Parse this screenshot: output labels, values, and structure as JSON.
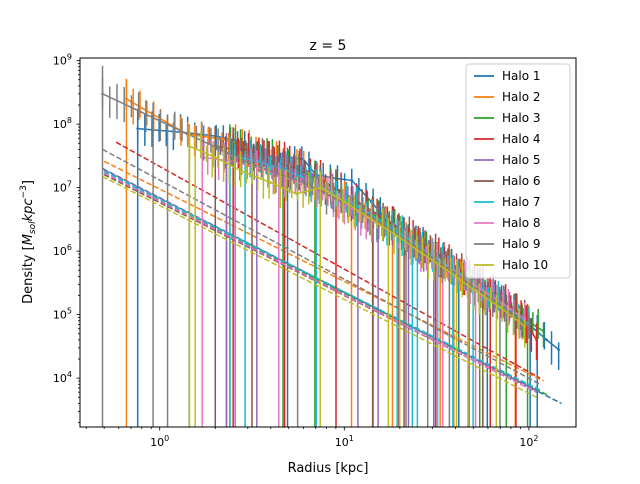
{
  "chart_data": {
    "type": "line",
    "title": "z = 5",
    "xlabel": "Radius [kpc]",
    "ylabel_main": "Density [",
    "ylabel_math": "M",
    "ylabel_sub": "sol",
    "ylabel_unit": "kpc",
    "ylabel_exp": "−3",
    "ylabel_close": "]",
    "x_scale": "log",
    "y_scale": "log",
    "xlim": [
      0.37,
      180
    ],
    "ylim": [
      1700,
      1100000000
    ],
    "x_ticks": [
      {
        "value": 1,
        "base": "10",
        "exp": "0"
      },
      {
        "value": 10,
        "base": "10",
        "exp": "1"
      },
      {
        "value": 100,
        "base": "10",
        "exp": "2"
      }
    ],
    "y_ticks": [
      {
        "value": 10000,
        "base": "10",
        "exp": "4"
      },
      {
        "value": 100000,
        "base": "10",
        "exp": "5"
      },
      {
        "value": 1000000,
        "base": "10",
        "exp": "6"
      },
      {
        "value": 10000000,
        "base": "10",
        "exp": "7"
      },
      {
        "value": 100000000,
        "base": "10",
        "exp": "8"
      },
      {
        "value": 1000000000,
        "base": "10",
        "exp": "9"
      }
    ],
    "legend_position": "top-right",
    "grid": false,
    "fit_lines": "dashed",
    "series": [
      {
        "name": "Halo 1",
        "color": "#1f77b4",
        "first_r": 0.76,
        "points": [
          [
            0.76,
            85000000.0
          ],
          [
            1.3,
            75000000.0
          ],
          [
            2.0,
            65000000.0
          ],
          [
            2.6,
            55000000.0
          ],
          [
            3.1,
            38000000.0
          ],
          [
            4.0,
            23000000.0
          ],
          [
            5.0,
            30000000.0
          ],
          [
            6.0,
            28000000.0
          ],
          [
            7.0,
            16000000.0
          ],
          [
            9.0,
            14000000.0
          ],
          [
            11.0,
            13000000.0
          ],
          [
            14.0,
            6000000.0
          ],
          [
            17.0,
            3000000.0
          ],
          [
            22.0,
            1800000.0
          ],
          [
            30.0,
            900000.0
          ],
          [
            40.0,
            500000.0
          ],
          [
            55.0,
            260000.0
          ],
          [
            75.0,
            140000.0
          ],
          [
            100.0,
            70000.0
          ],
          [
            125.0,
            40000.0
          ],
          [
            145.0,
            28000.0
          ]
        ],
        "fit": [
          [
            0.49,
            20000000.0
          ],
          [
            150.0,
            4000.0
          ]
        ]
      },
      {
        "name": "Halo 2",
        "color": "#ff7f0e",
        "first_r": 0.66,
        "points": [
          [
            0.66,
            250000000.0
          ],
          [
            1.4,
            70000000.0
          ],
          [
            2.2,
            58000000.0
          ],
          [
            3.0,
            42000000.0
          ],
          [
            4.5,
            27000000.0
          ],
          [
            6.0,
            20000000.0
          ],
          [
            8.0,
            10000000.0
          ],
          [
            10.0,
            6500000.0
          ],
          [
            14.0,
            4000000.0
          ],
          [
            18.0,
            2400000.0
          ],
          [
            25.0,
            1200000.0
          ],
          [
            35.0,
            600000.0
          ],
          [
            50.0,
            300000.0
          ],
          [
            70.0,
            160000.0
          ],
          [
            100.0,
            75000.0
          ]
        ],
        "fit": [
          [
            0.5,
            26000000.0
          ],
          [
            120.0,
            9000.0
          ]
        ]
      },
      {
        "name": "Halo 3",
        "color": "#2ca02c",
        "first_r": 2.4,
        "points": [
          [
            2.4,
            48000000.0
          ],
          [
            3.0,
            40000000.0
          ],
          [
            4.0,
            30000000.0
          ],
          [
            5.0,
            22000000.0
          ],
          [
            6.5,
            15000000.0
          ],
          [
            8.5,
            10000000.0
          ],
          [
            11.0,
            6000000.0
          ],
          [
            15.0,
            3500000.0
          ],
          [
            20.0,
            2000000.0
          ],
          [
            28.0,
            1000000.0
          ],
          [
            40.0,
            500000.0
          ],
          [
            55.0,
            260000.0
          ],
          [
            75.0,
            140000.0
          ],
          [
            95.0,
            85000.0
          ],
          [
            120.0,
            55000.0
          ]
        ],
        "fit": [
          [
            0.5,
            17000000.0
          ],
          [
            125.0,
            5500.0
          ]
        ]
      },
      {
        "name": "Halo 4",
        "color": "#d62728",
        "first_r": 2.5,
        "points": [
          [
            2.5,
            43000000.0
          ],
          [
            3.5,
            35000000.0
          ],
          [
            4.6,
            28000000.0
          ],
          [
            6.0,
            20000000.0
          ],
          [
            8.0,
            12000000.0
          ],
          [
            11.0,
            6500000.0
          ],
          [
            15.0,
            3800000.0
          ],
          [
            20.0,
            2200000.0
          ],
          [
            28.0,
            1100000.0
          ],
          [
            40.0,
            550000.0
          ],
          [
            55.0,
            280000.0
          ],
          [
            75.0,
            150000.0
          ],
          [
            95.0,
            80000.0
          ],
          [
            110.0,
            40000.0
          ]
        ],
        "fit": [
          [
            0.58,
            52000000.0
          ],
          [
            115.0,
            10000.0
          ]
        ]
      },
      {
        "name": "Halo 5",
        "color": "#9467bd",
        "first_r": 2.3,
        "points": [
          [
            2.3,
            35000000.0
          ],
          [
            3.2,
            30000000.0
          ],
          [
            4.5,
            22000000.0
          ],
          [
            6.0,
            16000000.0
          ],
          [
            8.0,
            10000000.0
          ],
          [
            11.0,
            5500000.0
          ],
          [
            15.0,
            3200000.0
          ],
          [
            20.0,
            1800000.0
          ],
          [
            28.0,
            950000.0
          ],
          [
            40.0,
            480000.0
          ],
          [
            55.0,
            250000.0
          ],
          [
            75.0,
            130000.0
          ],
          [
            95.0,
            70000.0
          ]
        ],
        "fit": [
          [
            0.5,
            19000000.0
          ],
          [
            110.0,
            6500.0
          ]
        ]
      },
      {
        "name": "Halo 6",
        "color": "#8c564b",
        "first_r": 2.0,
        "points": [
          [
            2.0,
            45000000.0
          ],
          [
            2.8,
            38000000.0
          ],
          [
            4.0,
            26000000.0
          ],
          [
            5.5,
            20000000.0
          ],
          [
            7.0,
            14000000.0
          ],
          [
            9.5,
            9000000.0
          ],
          [
            13.0,
            5000000.0
          ],
          [
            18.0,
            2800000.0
          ],
          [
            25.0,
            1500000.0
          ],
          [
            35.0,
            750000.0
          ],
          [
            50.0,
            380000.0
          ],
          [
            70.0,
            190000.0
          ],
          [
            95.0,
            90000.0
          ]
        ],
        "fit": [
          [
            0.5,
            16000000.0
          ],
          [
            110.0,
            6000.0
          ]
        ]
      },
      {
        "name": "Halo 7",
        "color": "#17becf",
        "first_r": 2.4,
        "points": [
          [
            2.4,
            32000000.0
          ],
          [
            3.4,
            26000000.0
          ],
          [
            4.8,
            19000000.0
          ],
          [
            6.5,
            13000000.0
          ],
          [
            8.5,
            8500000.0
          ],
          [
            12.0,
            5000000.0
          ],
          [
            16.0,
            2900000.0
          ],
          [
            22.0,
            1600000.0
          ],
          [
            30.0,
            850000.0
          ],
          [
            42.0,
            450000.0
          ],
          [
            60.0,
            220000.0
          ],
          [
            80.0,
            120000.0
          ],
          [
            100.0,
            70000.0
          ]
        ],
        "fit": [
          [
            0.5,
            18000000.0
          ],
          [
            115.0,
            6500.0
          ]
        ]
      },
      {
        "name": "Halo 8",
        "color": "#e377c2",
        "first_r": 1.7,
        "points": [
          [
            1.7,
            30000000.0
          ],
          [
            2.5,
            26000000.0
          ],
          [
            3.5,
            20000000.0
          ],
          [
            5.0,
            14000000.0
          ],
          [
            7.0,
            9000000.0
          ],
          [
            9.5,
            6000000.0
          ],
          [
            13.0,
            3500000.0
          ],
          [
            18.0,
            2000000.0
          ],
          [
            25.0,
            1100000.0
          ],
          [
            35.0,
            600000.0
          ],
          [
            50.0,
            300000.0
          ],
          [
            70.0,
            160000.0
          ],
          [
            95.0,
            85000.0
          ]
        ],
        "fit": [
          [
            0.5,
            17000000.0
          ],
          [
            110.0,
            6000.0
          ]
        ]
      },
      {
        "name": "Halo 9",
        "color": "#7f7f7f",
        "first_r": 0.49,
        "points": [
          [
            0.49,
            300000000.0
          ],
          [
            3.0,
            25000000.0
          ],
          [
            4.5,
            16000000.0
          ],
          [
            6.0,
            12000000.0
          ],
          [
            8.0,
            8000000.0
          ],
          [
            11.0,
            5000000.0
          ],
          [
            15.0,
            3000000.0
          ],
          [
            20.0,
            1700000.0
          ],
          [
            28.0,
            900000.0
          ],
          [
            40.0,
            450000.0
          ],
          [
            55.0,
            230000.0
          ],
          [
            75.0,
            120000.0
          ],
          [
            100.0,
            65000.0
          ]
        ],
        "fit": [
          [
            0.49,
            40000000.0
          ],
          [
            115.0,
            8000.0
          ]
        ]
      },
      {
        "name": "Halo 10",
        "color": "#bcbd22",
        "first_r": 1.45,
        "points": [
          [
            1.45,
            45000000.0
          ],
          [
            2.0,
            30000000.0
          ],
          [
            2.8,
            18000000.0
          ],
          [
            4.0,
            12000000.0
          ],
          [
            5.5,
            8000000.0
          ],
          [
            7.5,
            10000000.0
          ],
          [
            10.0,
            6000000.0
          ],
          [
            14.0,
            3200000.0
          ],
          [
            19.0,
            1800000.0
          ],
          [
            26.0,
            950000.0
          ],
          [
            36.0,
            500000.0
          ],
          [
            50.0,
            250000.0
          ],
          [
            70.0,
            130000.0
          ],
          [
            95.0,
            65000.0
          ]
        ],
        "fit": [
          [
            0.49,
            15000000.0
          ],
          [
            110.0,
            5000.0
          ]
        ]
      }
    ]
  }
}
